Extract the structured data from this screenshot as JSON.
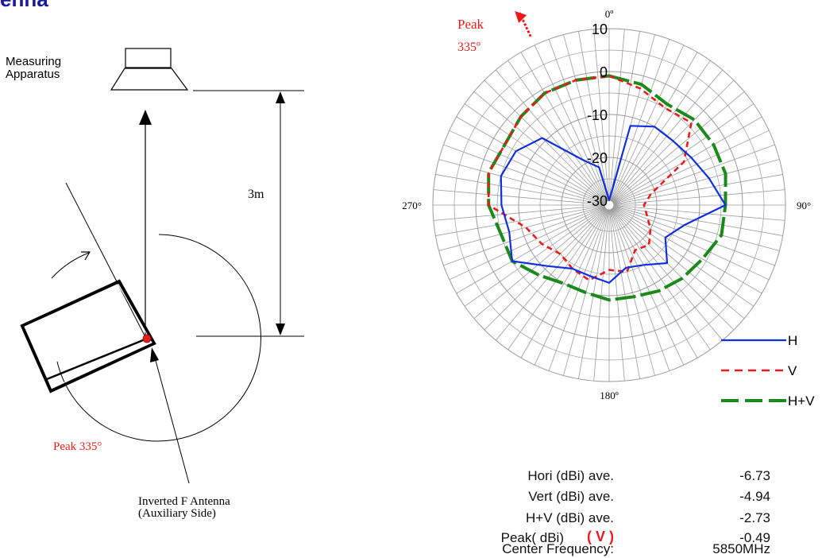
{
  "title": "enna",
  "diagram": {
    "apparatus_label_line1": "Measuring",
    "apparatus_label_line2": "Apparatus",
    "distance_label": "3m",
    "peak_label": "Peak 335°",
    "antenna_label_line1": "Inverted F Antenna",
    "antenna_label_line2": "(Auxiliary Side)"
  },
  "colors": {
    "title": "#1a1aa0",
    "horizontal": "#1030e0",
    "vertical": "#ee1a1a",
    "combined": "#1a8a1a",
    "peak_text": "#ee1a1a"
  },
  "summary": {
    "rows": [
      {
        "label": "Hori (dBi)  ave.",
        "value": "-6.73"
      },
      {
        "label": "Vert  (dBi)  ave.",
        "value": "-4.94"
      },
      {
        "label": "H+V  (dBi)  ave.",
        "value": "-2.73"
      },
      {
        "label": "Peak( dBi)",
        "marker": "( V )",
        "value": "-0.49"
      },
      {
        "label": "Center  Frequency:",
        "value": "5850MHz"
      }
    ]
  },
  "chart_data": {
    "type": "polar-line",
    "angle_unit": "degrees",
    "angle_direction": "clockwise from top",
    "angle_labels": [
      {
        "angle": 0,
        "text": "0º"
      },
      {
        "angle": 90,
        "text": "90°"
      },
      {
        "angle": 180,
        "text": "180º"
      },
      {
        "angle": 270,
        "text": "270°"
      }
    ],
    "radial_range": [
      -30,
      10
    ],
    "radial_ticks": [
      10,
      0,
      -10,
      -20,
      -30
    ],
    "radial_spoke_step_deg": 5,
    "peak_marker": {
      "angle": 335,
      "line1": "Peak",
      "line2": "335º"
    },
    "legend_position": "bottom-right",
    "series": [
      {
        "name": "H",
        "style": "solid",
        "color": "#1030e0",
        "angles": [
          0,
          15,
          30,
          45,
          60,
          75,
          90,
          105,
          120,
          135,
          150,
          165,
          180,
          195,
          210,
          225,
          240,
          255,
          270,
          285,
          300,
          315,
          330,
          345
        ],
        "values": [
          -30,
          -12,
          -10,
          -10,
          -9,
          -7,
          -4,
          -13,
          -16,
          -12,
          -15,
          -16,
          -13,
          -14,
          -14,
          -11,
          -5,
          -7,
          -6,
          -5,
          -6,
          -9,
          -19,
          -22
        ]
      },
      {
        "name": "V",
        "style": "dashed",
        "color": "#ee1a1a",
        "angles": [
          0,
          15,
          30,
          45,
          60,
          75,
          90,
          105,
          120,
          135,
          150,
          165,
          180,
          195,
          210,
          225,
          240,
          255,
          270,
          285,
          300,
          315,
          330,
          345
        ],
        "values": [
          -1,
          -3,
          -5,
          -4,
          -11,
          -21,
          -23,
          -22,
          -20,
          -18,
          -19,
          -15,
          -16,
          -13,
          -14,
          -15,
          -13,
          -11,
          -3,
          -2,
          -3,
          -2,
          -1,
          -1
        ]
      },
      {
        "name": "H+V",
        "style": "dashed",
        "color": "#1a8a1a",
        "angles": [
          0,
          15,
          30,
          45,
          60,
          75,
          90,
          105,
          120,
          135,
          150,
          165,
          180,
          195,
          210,
          225,
          240,
          255,
          270,
          285,
          300,
          315,
          330,
          345
        ],
        "values": [
          -1,
          -2,
          -4,
          -3,
          -3,
          -3,
          -4,
          -4,
          -6,
          -7,
          -8,
          -9,
          -9,
          -10,
          -10,
          -8,
          -5,
          -5,
          -3,
          -2,
          -3,
          -2,
          -1,
          -1
        ]
      }
    ]
  }
}
